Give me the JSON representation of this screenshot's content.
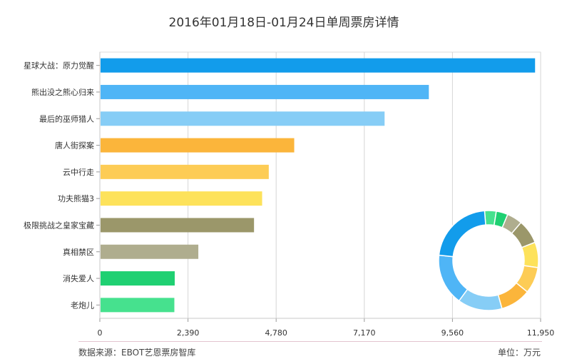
{
  "chart_data": {
    "type": "bar",
    "orientation": "horizontal",
    "title": "2016年01月18日-01月24日单周票房详情",
    "categories": [
      "星球大战：原力觉醒",
      "熊出没之熊心归来",
      "最后的巫师猎人",
      "唐人街探案",
      "云中行走",
      "功夫熊猫3",
      "极限挑战之皇家宝藏",
      "真相禁区",
      "消失爱人",
      "老炮儿"
    ],
    "values": [
      11800,
      8920,
      7720,
      5270,
      4580,
      4400,
      4180,
      2670,
      2030,
      2020
    ],
    "colors": [
      "#129ceb",
      "#4fb5f6",
      "#86cdf6",
      "#fbb53b",
      "#fdcc55",
      "#fde25b",
      "#9b976a",
      "#afad8e",
      "#1fd072",
      "#46e18e"
    ],
    "xticks": [
      "0",
      "2,390",
      "4,780",
      "7,170",
      "9,560",
      "11,950"
    ],
    "xlim": [
      0,
      11950
    ],
    "grid": true,
    "inset": {
      "type": "donut",
      "values": [
        11800,
        8920,
        7720,
        5270,
        4580,
        4400,
        4180,
        2670,
        2030,
        2020
      ]
    }
  },
  "footer": {
    "source": "数据来源：EBOT艺恩票房智库",
    "unit": "单位：万元"
  }
}
